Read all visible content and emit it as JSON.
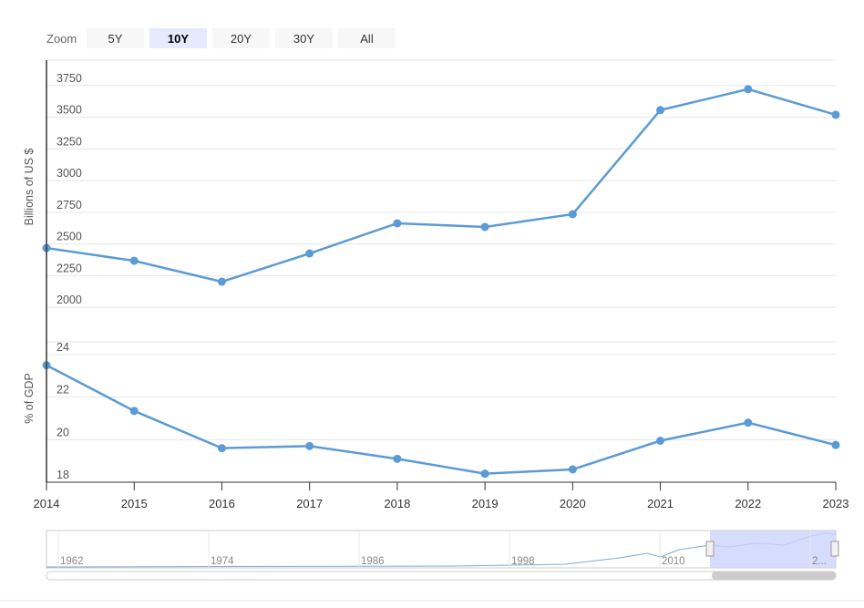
{
  "zoom": {
    "label": "Zoom",
    "buttons": [
      "5Y",
      "10Y",
      "20Y",
      "30Y",
      "All"
    ],
    "selected_index": 1
  },
  "chart_data": [
    {
      "type": "line",
      "ylabel": "Billions of US $",
      "x": [
        "2014",
        "2015",
        "2016",
        "2017",
        "2018",
        "2019",
        "2020",
        "2021",
        "2022",
        "2023"
      ],
      "values": [
        2468,
        2367,
        2202,
        2425,
        2663,
        2634,
        2735,
        3556,
        3721,
        3519
      ],
      "color": "#5b9bd5",
      "ylim": [
        1850,
        3950
      ],
      "yticks": [
        2000,
        2250,
        2500,
        2750,
        3000,
        3250,
        3500,
        3750
      ],
      "grid": true
    },
    {
      "type": "line",
      "ylabel": "% of GDP",
      "values": [
        23.5,
        21.35,
        19.6,
        19.7,
        19.1,
        18.4,
        18.6,
        19.95,
        20.8,
        19.75
      ],
      "color": "#5b9bd5",
      "ylim": [
        18,
        24.6
      ],
      "yticks": [
        18,
        20,
        22,
        24
      ],
      "grid": true
    }
  ],
  "navigator": {
    "labels": [
      "1962",
      "1974",
      "1986",
      "1998",
      "2010",
      "2..."
    ]
  }
}
